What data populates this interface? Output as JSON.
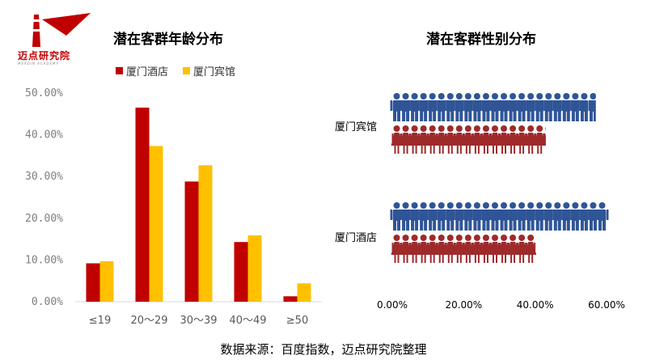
{
  "logo": {
    "text": "迈点研究院",
    "subtext": "MEADIN ACADEMY"
  },
  "source_note": "数据来源：百度指数，迈点研究院整理",
  "colors": {
    "red": "#c00000",
    "yellow": "#ffc000",
    "blue": "#2f5597",
    "female": "#9e2a2b"
  },
  "chart_data": [
    {
      "type": "bar",
      "title": "潜在客群年龄分布",
      "categories": [
        "≤19",
        "20～29",
        "30～39",
        "40～49",
        "≥50"
      ],
      "y_ticks": [
        "0.00%",
        "10.00%",
        "20.00%",
        "30.00%",
        "40.00%",
        "50.00%"
      ],
      "ylim": [
        0,
        50
      ],
      "legend_position": "top",
      "series": [
        {
          "name": "厦门酒店",
          "color": "#c00000",
          "values": [
            9.2,
            46.5,
            28.8,
            14.3,
            1.3
          ]
        },
        {
          "name": "厦门宾馆",
          "color": "#ffc000",
          "values": [
            9.7,
            37.3,
            32.7,
            15.9,
            4.4
          ]
        }
      ]
    },
    {
      "type": "pictograph",
      "title": "潜在客群性别分布",
      "x_ticks": [
        "0.00%",
        "20.00%",
        "40.00%",
        "60.00%"
      ],
      "xlim": [
        0,
        60
      ],
      "unit_per_icon": 2.5,
      "rows": [
        {
          "name": "厦门宾馆",
          "male": 57,
          "female": 43
        },
        {
          "name": "厦门酒店",
          "male": 60,
          "female": 40
        }
      ]
    }
  ]
}
